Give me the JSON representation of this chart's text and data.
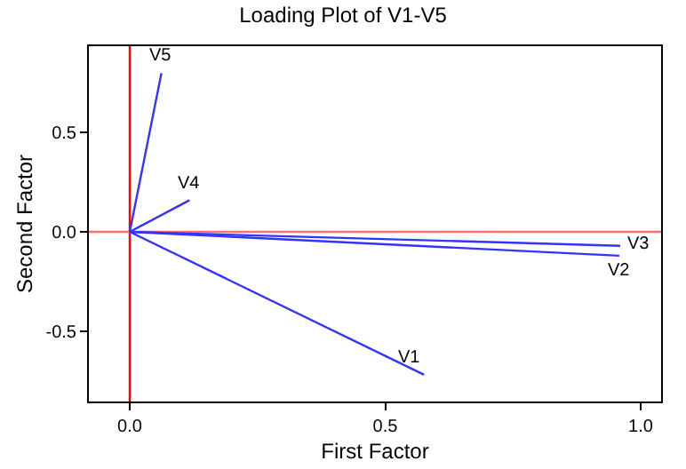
{
  "chart_data": {
    "type": "line",
    "title": "Loading Plot of V1-V5",
    "xlabel": "First Factor",
    "ylabel": "Second Factor",
    "series": [
      {
        "name": "V1",
        "color": "#3333ff",
        "x": [
          0,
          0.576
        ],
        "values": [
          0,
          -0.72
        ]
      },
      {
        "name": "V2",
        "color": "#3333ff",
        "x": [
          0,
          0.958
        ],
        "values": [
          0,
          -0.12
        ]
      },
      {
        "name": "V3",
        "color": "#3333ff",
        "x": [
          0,
          0.96
        ],
        "values": [
          0,
          -0.07
        ]
      },
      {
        "name": "V4",
        "color": "#3333ff",
        "x": [
          0,
          0.117
        ],
        "values": [
          0,
          0.16
        ]
      },
      {
        "name": "V5",
        "color": "#3333ff",
        "x": [
          0,
          0.062
        ],
        "values": [
          0,
          0.8
        ]
      }
    ],
    "xlim": [
      -0.08,
      1.04
    ],
    "ylim": [
      -0.855,
      0.936
    ],
    "xticks": [
      {
        "value": 0,
        "label": "0.0"
      },
      {
        "value": 0.5,
        "label": "0.5"
      },
      {
        "value": 1,
        "label": "1.0"
      }
    ],
    "yticks": [
      {
        "value": -0.5,
        "label": "-0.5"
      },
      {
        "value": 0,
        "label": "0.0"
      },
      {
        "value": 0.5,
        "label": "0.5"
      }
    ],
    "ref_lines": [
      {
        "axis": "x",
        "value": 0,
        "color": "#ff0000"
      },
      {
        "axis": "y",
        "value": 0,
        "color": "#ff7070"
      }
    ],
    "grid": false,
    "legend": false,
    "marker": "none",
    "line_style": "solid"
  }
}
